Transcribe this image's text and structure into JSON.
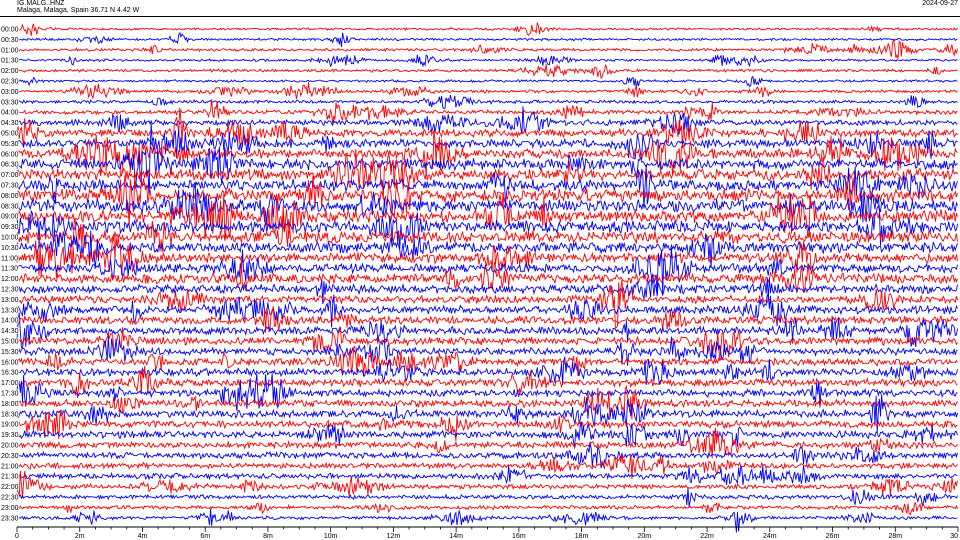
{
  "header": {
    "station": "IG.MALG..HNZ",
    "location": "Malaga, Malaga, Spain  36.71 N 4.42 W",
    "date": "2024-09-27"
  },
  "chart_data": {
    "type": "line",
    "title": "",
    "xlabel": "",
    "ylabel": "",
    "x_range_minutes": [
      0,
      30
    ],
    "x_ticks": [
      "0",
      "2m",
      "4m",
      "6m",
      "8m",
      "10m",
      "12m",
      "14m",
      "16m",
      "18m",
      "20m",
      "22m",
      "24m",
      "26m",
      "28m",
      "30"
    ],
    "rows": [
      {
        "label": "00:00",
        "color": "#ff0000",
        "amplitude": 0.25
      },
      {
        "label": "00:30",
        "color": "#0000ff",
        "amplitude": 0.25
      },
      {
        "label": "01:00",
        "color": "#ff0000",
        "amplitude": 0.3
      },
      {
        "label": "01:30",
        "color": "#0000ff",
        "amplitude": 0.25
      },
      {
        "label": "02:00",
        "color": "#ff0000",
        "amplitude": 0.3
      },
      {
        "label": "02:30",
        "color": "#0000ff",
        "amplitude": 0.25
      },
      {
        "label": "03:00",
        "color": "#ff0000",
        "amplitude": 0.3
      },
      {
        "label": "03:30",
        "color": "#0000ff",
        "amplitude": 0.35
      },
      {
        "label": "04:00",
        "color": "#ff0000",
        "amplitude": 0.45
      },
      {
        "label": "04:30",
        "color": "#0000ff",
        "amplitude": 0.6
      },
      {
        "label": "05:00",
        "color": "#ff0000",
        "amplitude": 0.8
      },
      {
        "label": "05:30",
        "color": "#0000ff",
        "amplitude": 0.9
      },
      {
        "label": "06:00",
        "color": "#ff0000",
        "amplitude": 1.0
      },
      {
        "label": "06:30",
        "color": "#0000ff",
        "amplitude": 1.1
      },
      {
        "label": "07:00",
        "color": "#ff0000",
        "amplitude": 1.2
      },
      {
        "label": "07:30",
        "color": "#0000ff",
        "amplitude": 1.2
      },
      {
        "label": "08:00",
        "color": "#ff0000",
        "amplitude": 1.3
      },
      {
        "label": "08:30",
        "color": "#0000ff",
        "amplitude": 1.3
      },
      {
        "label": "09:00",
        "color": "#ff0000",
        "amplitude": 1.3
      },
      {
        "label": "09:30",
        "color": "#0000ff",
        "amplitude": 1.25
      },
      {
        "label": "10:00",
        "color": "#ff0000",
        "amplitude": 1.25
      },
      {
        "label": "10:30",
        "color": "#0000ff",
        "amplitude": 1.1
      },
      {
        "label": "11:00",
        "color": "#ff0000",
        "amplitude": 1.0
      },
      {
        "label": "11:30",
        "color": "#0000ff",
        "amplitude": 0.95
      },
      {
        "label": "12:00",
        "color": "#ff0000",
        "amplitude": 1.0
      },
      {
        "label": "12:30",
        "color": "#0000ff",
        "amplitude": 0.9
      },
      {
        "label": "13:00",
        "color": "#ff0000",
        "amplitude": 0.8
      },
      {
        "label": "13:30",
        "color": "#0000ff",
        "amplitude": 0.85
      },
      {
        "label": "14:00",
        "color": "#ff0000",
        "amplitude": 0.8
      },
      {
        "label": "14:30",
        "color": "#0000ff",
        "amplitude": 0.8
      },
      {
        "label": "15:00",
        "color": "#ff0000",
        "amplitude": 0.8
      },
      {
        "label": "15:30",
        "color": "#0000ff",
        "amplitude": 0.75
      },
      {
        "label": "16:00",
        "color": "#ff0000",
        "amplitude": 0.75
      },
      {
        "label": "16:30",
        "color": "#0000ff",
        "amplitude": 0.8
      },
      {
        "label": "17:00",
        "color": "#ff0000",
        "amplitude": 0.8
      },
      {
        "label": "17:30",
        "color": "#0000ff",
        "amplitude": 0.75
      },
      {
        "label": "18:00",
        "color": "#ff0000",
        "amplitude": 0.75
      },
      {
        "label": "18:30",
        "color": "#0000ff",
        "amplitude": 0.8
      },
      {
        "label": "19:00",
        "color": "#ff0000",
        "amplitude": 0.75
      },
      {
        "label": "19:30",
        "color": "#0000ff",
        "amplitude": 0.75
      },
      {
        "label": "20:00",
        "color": "#ff0000",
        "amplitude": 0.7
      },
      {
        "label": "20:30",
        "color": "#0000ff",
        "amplitude": 0.65
      },
      {
        "label": "21:00",
        "color": "#ff0000",
        "amplitude": 0.6
      },
      {
        "label": "21:30",
        "color": "#0000ff",
        "amplitude": 0.55
      },
      {
        "label": "22:00",
        "color": "#ff0000",
        "amplitude": 0.5
      },
      {
        "label": "22:30",
        "color": "#0000ff",
        "amplitude": 0.45
      },
      {
        "label": "23:00",
        "color": "#ff0000",
        "amplitude": 0.4
      },
      {
        "label": "23:30",
        "color": "#0000ff",
        "amplitude": 0.35
      }
    ]
  }
}
